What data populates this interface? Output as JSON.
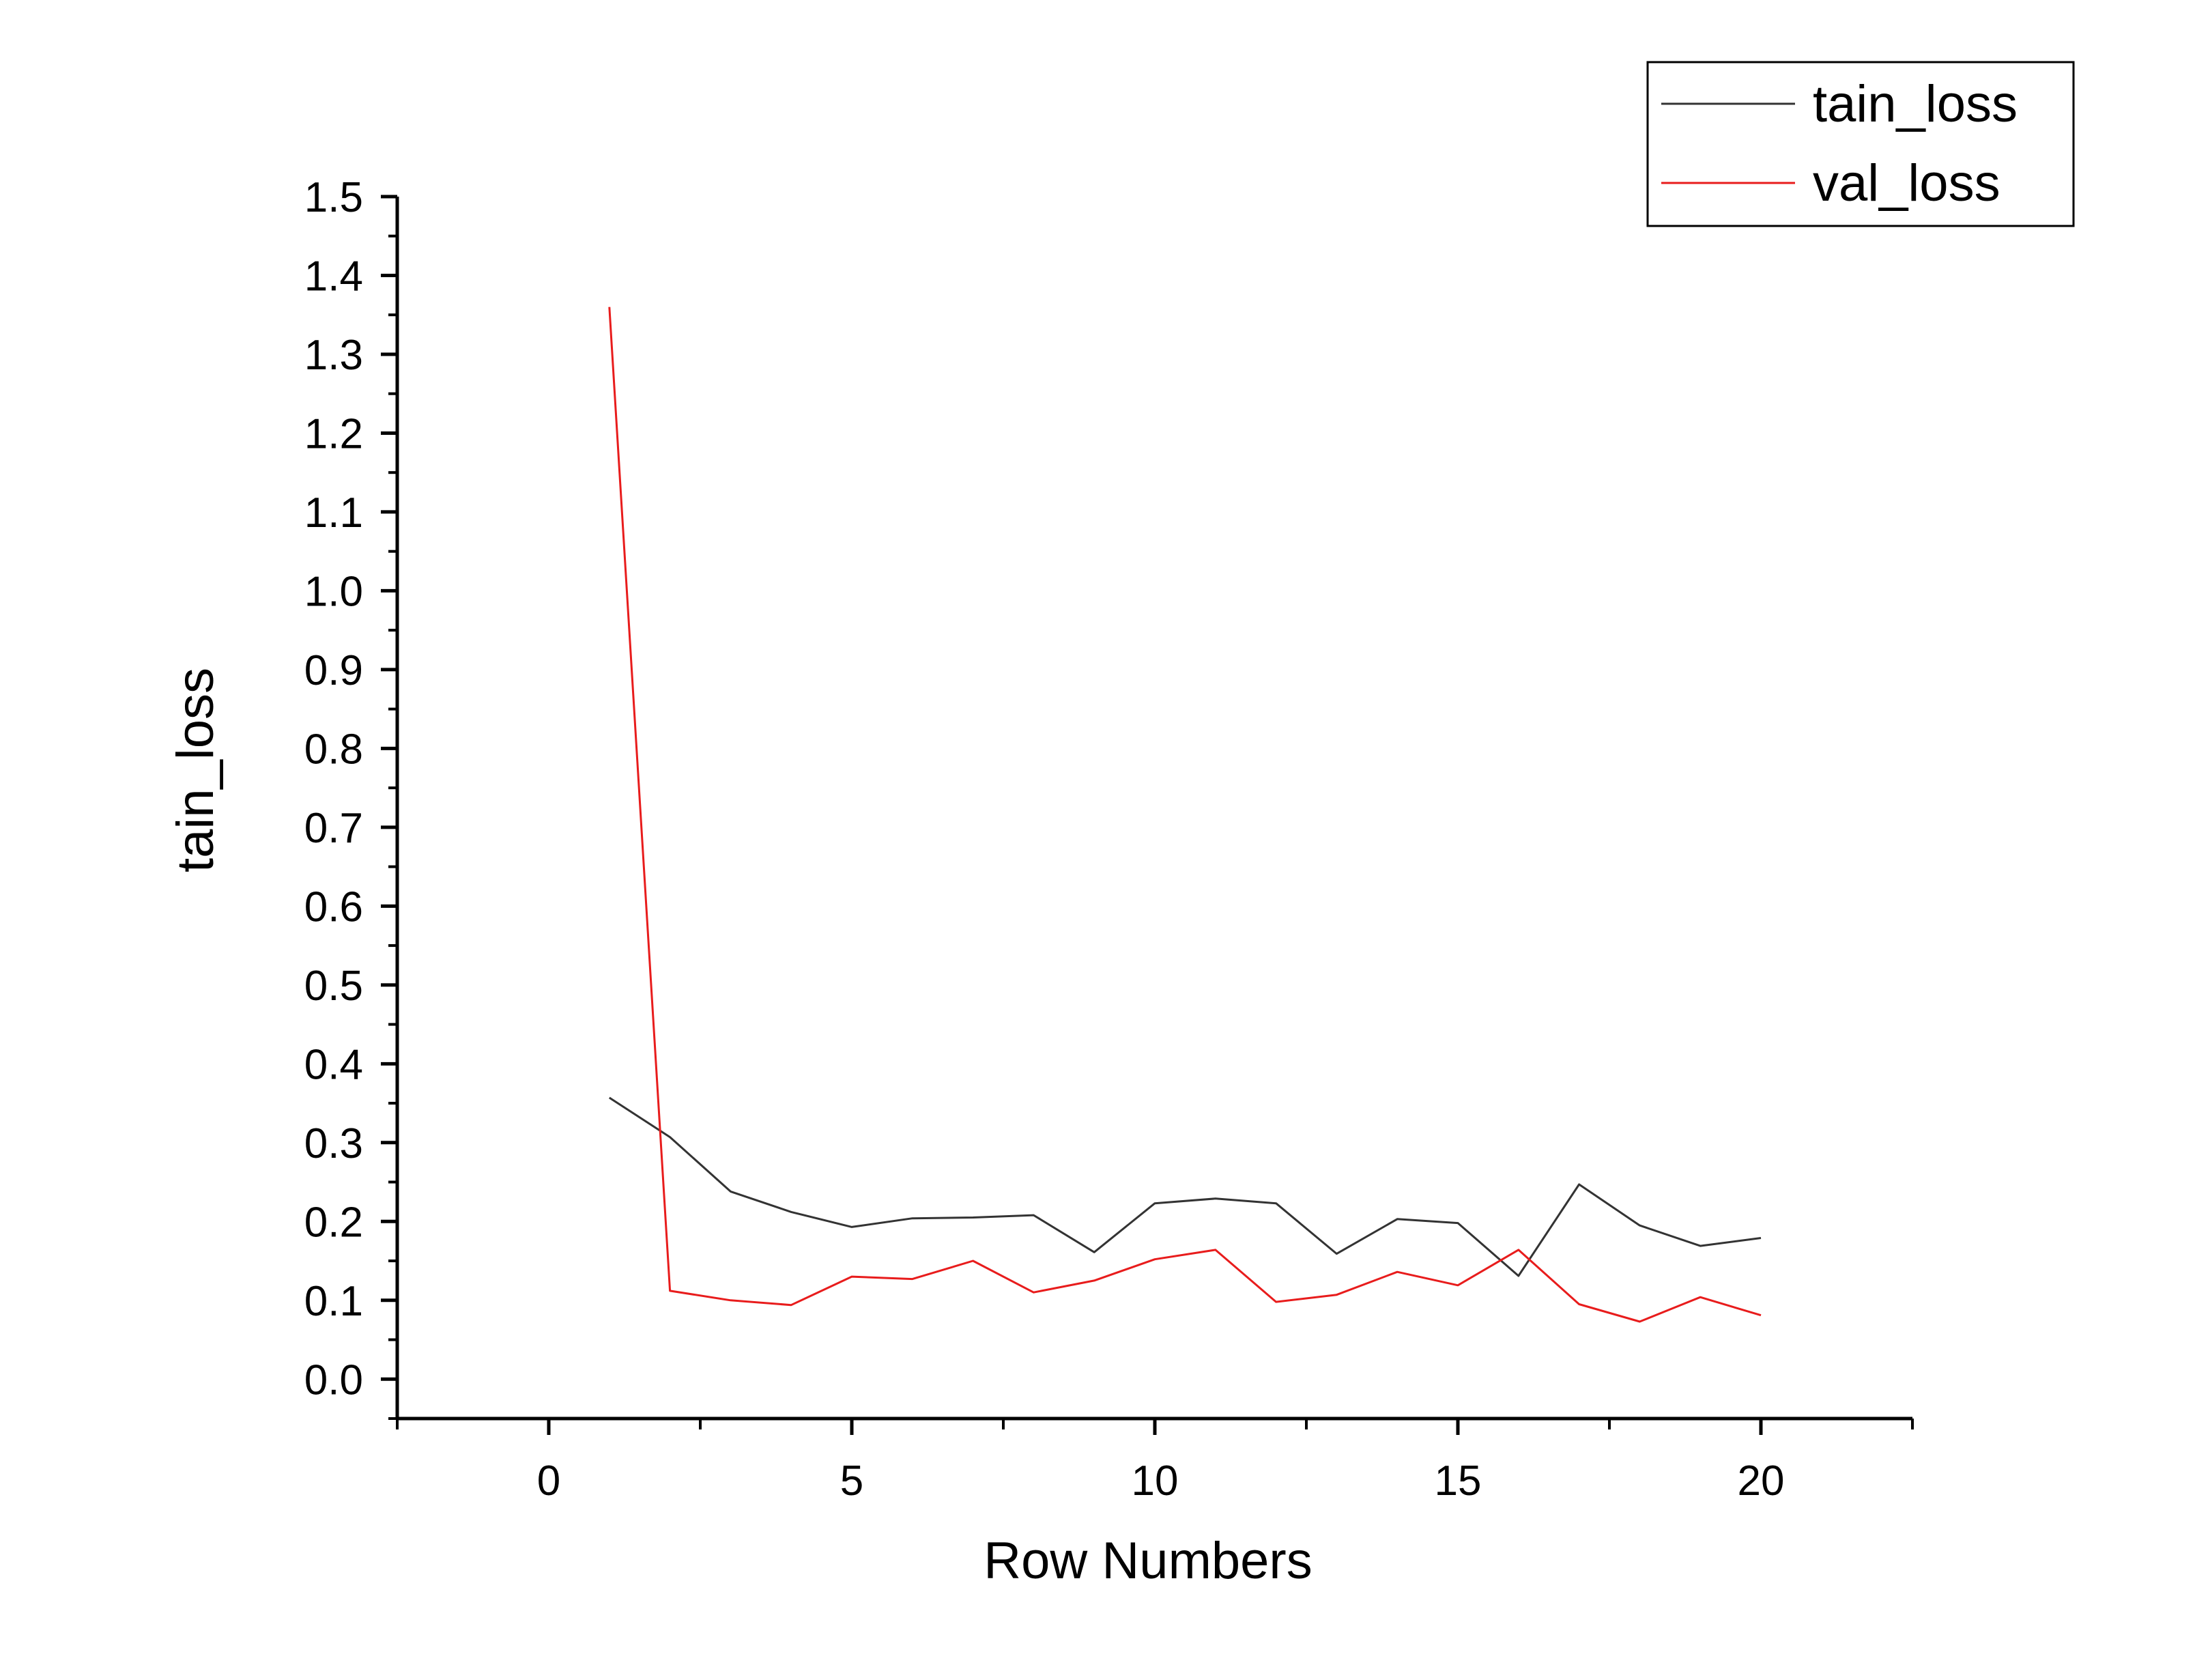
{
  "chart_data": {
    "type": "line",
    "title": "",
    "xlabel": "Row Numbers",
    "ylabel": "tain_loss",
    "xlim": [
      -2.5,
      22.5
    ],
    "ylim": [
      -0.05,
      1.5
    ],
    "xticks": [
      "0",
      "5",
      "10",
      "15",
      "20"
    ],
    "yticks": [
      "0.0",
      "0.1",
      "0.2",
      "0.3",
      "0.4",
      "0.5",
      "0.6",
      "0.7",
      "0.8",
      "0.9",
      "1.0",
      "1.1",
      "1.2",
      "1.3",
      "1.4",
      "1.5"
    ],
    "grid": false,
    "legend_position": "top-right",
    "x": [
      1,
      2,
      3,
      4,
      5,
      6,
      7,
      8,
      9,
      10,
      11,
      12,
      13,
      14,
      15,
      16,
      17,
      18,
      19,
      20
    ],
    "series": [
      {
        "name": "tain_loss",
        "color": "#333333",
        "values": [
          0.357,
          0.307,
          0.238,
          0.212,
          0.193,
          0.204,
          0.205,
          0.208,
          0.161,
          0.223,
          0.229,
          0.223,
          0.159,
          0.203,
          0.198,
          0.131,
          0.247,
          0.195,
          0.169,
          0.179
        ]
      },
      {
        "name": "val_loss",
        "color": "#e81c1c",
        "values": [
          1.36,
          0.112,
          0.1,
          0.094,
          0.13,
          0.127,
          0.15,
          0.11,
          0.125,
          0.152,
          0.164,
          0.098,
          0.107,
          0.136,
          0.119,
          0.164,
          0.095,
          0.073,
          0.104,
          0.081
        ]
      }
    ]
  }
}
